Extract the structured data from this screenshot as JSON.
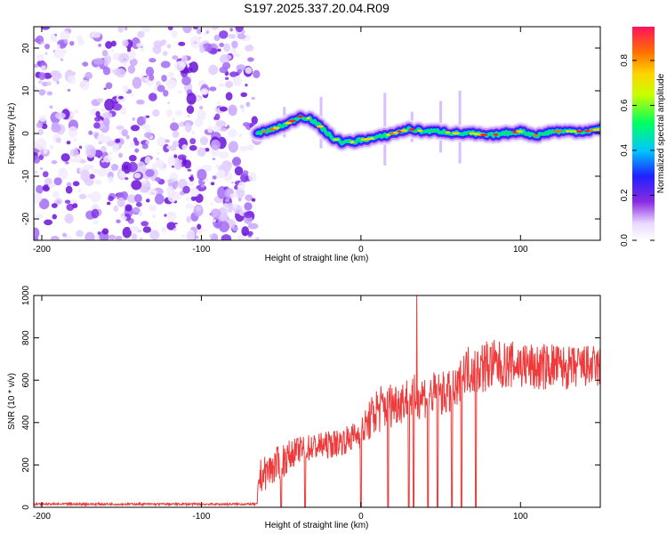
{
  "title": "S197.2025.337.20.04.R09",
  "chart_data": [
    {
      "type": "heatmap",
      "xlabel": "Height of straight line (km)",
      "ylabel": "Frequency (Hz)",
      "xlim": [
        -205,
        150
      ],
      "ylim": [
        -25,
        25
      ],
      "xticks": [
        -200,
        -100,
        0,
        100
      ],
      "yticks": [
        -20,
        -10,
        0,
        10,
        20
      ],
      "noise_region_x": [
        -205,
        -65
      ],
      "signal_trace": {
        "x": [
          -65,
          -55,
          -45,
          -38,
          -32,
          -25,
          -18,
          -12,
          -5,
          0,
          10,
          20,
          30,
          40,
          50,
          60,
          70,
          80,
          90,
          100,
          110,
          120,
          130,
          140,
          150
        ],
        "y": [
          0,
          1,
          2.5,
          4,
          3.5,
          1.5,
          -1,
          -2,
          -2,
          -1.5,
          -1,
          0,
          1,
          0.5,
          0.5,
          0,
          0,
          -0.5,
          0,
          0.5,
          -0.5,
          0.5,
          0.5,
          0.5,
          1
        ]
      },
      "colorbar": {
        "label": "Normalized spectral amplitude",
        "range": [
          0,
          0.95
        ],
        "ticks": [
          "0.0",
          "0.2",
          "0.4",
          "0.6",
          "0.8"
        ]
      }
    },
    {
      "type": "line",
      "xlabel": "Height of straight line (km)",
      "ylabel": "SNR (10 * v/v)",
      "xlim": [
        -205,
        150
      ],
      "ylim": [
        0,
        1000
      ],
      "xticks": [
        -200,
        -100,
        0,
        100
      ],
      "yticks": [
        0,
        200,
        400,
        600,
        800,
        1000
      ],
      "color": "#ee3a3a",
      "envelope": {
        "x": [
          -205,
          -65,
          -64,
          -50,
          -40,
          -30,
          -20,
          -10,
          0,
          10,
          20,
          30,
          40,
          50,
          60,
          65,
          70,
          80,
          90,
          100,
          110,
          120,
          130,
          140,
          150
        ],
        "low": [
          10,
          10,
          60,
          130,
          210,
          220,
          230,
          250,
          280,
          340,
          380,
          410,
          420,
          430,
          430,
          540,
          530,
          540,
          560,
          560,
          540,
          560,
          550,
          560,
          560
        ],
        "high": [
          20,
          20,
          220,
          300,
          330,
          350,
          360,
          380,
          420,
          580,
          600,
          620,
          640,
          640,
          650,
          760,
          780,
          800,
          780,
          790,
          770,
          780,
          760,
          770,
          760
        ]
      },
      "peak": {
        "x": 35,
        "y": 1000
      },
      "dropouts_x": [
        -50,
        -35,
        0,
        17,
        30,
        33,
        42,
        48,
        57,
        63,
        72
      ]
    }
  ]
}
